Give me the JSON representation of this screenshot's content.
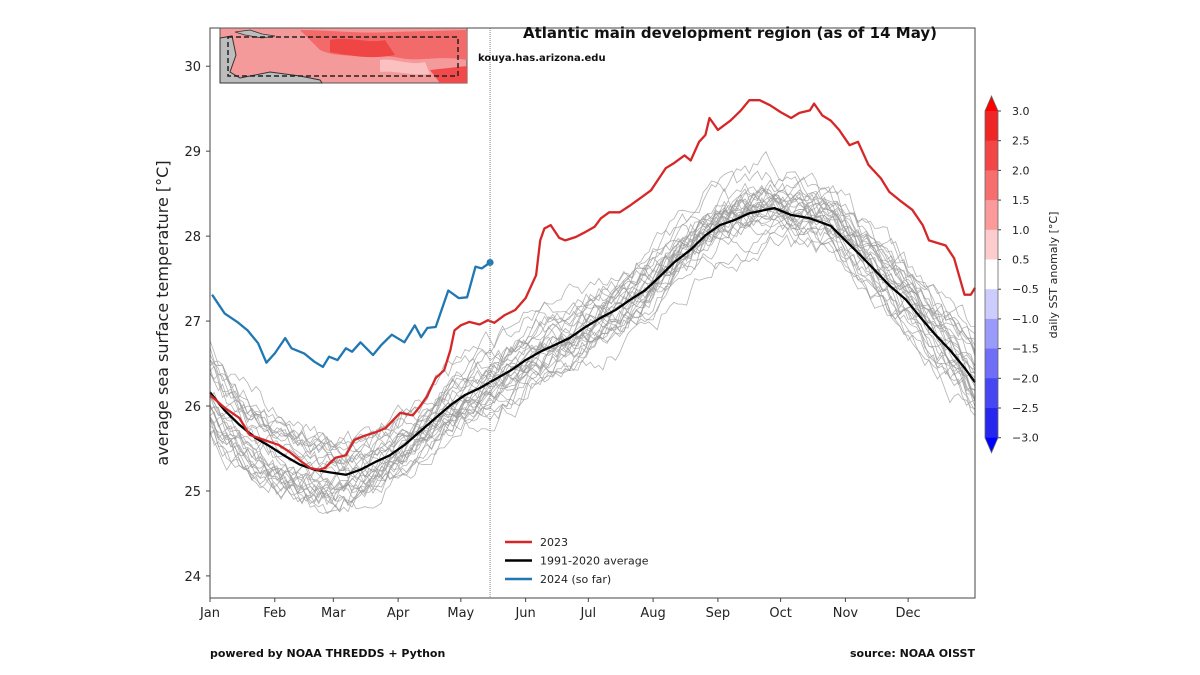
{
  "chart_data": {
    "type": "line",
    "title": "Atlantic main development region (as of 14 May)",
    "watermark": "kouya.has.arizona.edu",
    "ylabel": "average sea surface temperature [°C]",
    "xlabel": "",
    "x_unit": "day of year",
    "xlim": [
      0,
      366
    ],
    "ylim": [
      23.74,
      30.45
    ],
    "x_ticks": [
      {
        "day": 0,
        "label": "Jan"
      },
      {
        "day": 31,
        "label": "Feb"
      },
      {
        "day": 59,
        "label": "Mar"
      },
      {
        "day": 90,
        "label": "Apr"
      },
      {
        "day": 120,
        "label": "May"
      },
      {
        "day": 151,
        "label": "Jun"
      },
      {
        "day": 181,
        "label": "Jul"
      },
      {
        "day": 212,
        "label": "Aug"
      },
      {
        "day": 243,
        "label": "Sep"
      },
      {
        "day": 273,
        "label": "Oct"
      },
      {
        "day": 304,
        "label": "Nov"
      },
      {
        "day": 334,
        "label": "Dec"
      }
    ],
    "y_ticks": [
      24,
      25,
      26,
      27,
      28,
      29,
      30
    ],
    "current_date_marker_day": 134,
    "grid": false,
    "legend_position": "bottom-center",
    "series": [
      {
        "name": "2023",
        "color": "#d62728",
        "points": [
          [
            0,
            26.13
          ],
          [
            7,
            25.98
          ],
          [
            14,
            25.86
          ],
          [
            19,
            25.66
          ],
          [
            26,
            25.6
          ],
          [
            33,
            25.54
          ],
          [
            38,
            25.46
          ],
          [
            43,
            25.36
          ],
          [
            48,
            25.27
          ],
          [
            52,
            25.25
          ],
          [
            55,
            25.27
          ],
          [
            60,
            25.39
          ],
          [
            65,
            25.42
          ],
          [
            69,
            25.6
          ],
          [
            74,
            25.65
          ],
          [
            79,
            25.69
          ],
          [
            84,
            25.74
          ],
          [
            91,
            25.92
          ],
          [
            97,
            25.89
          ],
          [
            100,
            25.98
          ],
          [
            104,
            26.12
          ],
          [
            108,
            26.33
          ],
          [
            112,
            26.42
          ],
          [
            115,
            26.66
          ],
          [
            117,
            26.89
          ],
          [
            120,
            26.95
          ],
          [
            124,
            26.99
          ],
          [
            129,
            26.96
          ],
          [
            133,
            27.01
          ],
          [
            136,
            26.98
          ],
          [
            141,
            27.07
          ],
          [
            146,
            27.13
          ],
          [
            151,
            27.27
          ],
          [
            156,
            27.54
          ],
          [
            158,
            27.95
          ],
          [
            160,
            28.09
          ],
          [
            163,
            28.13
          ],
          [
            167,
            27.98
          ],
          [
            170,
            27.95
          ],
          [
            175,
            27.99
          ],
          [
            179,
            28.04
          ],
          [
            184,
            28.11
          ],
          [
            187,
            28.21
          ],
          [
            191,
            28.28
          ],
          [
            196,
            28.28
          ],
          [
            201,
            28.36
          ],
          [
            206,
            28.45
          ],
          [
            211,
            28.54
          ],
          [
            214,
            28.65
          ],
          [
            218,
            28.8
          ],
          [
            222,
            28.86
          ],
          [
            227,
            28.95
          ],
          [
            230,
            28.89
          ],
          [
            234,
            29.11
          ],
          [
            237,
            29.19
          ],
          [
            239,
            29.39
          ],
          [
            243,
            29.25
          ],
          [
            249,
            29.36
          ],
          [
            254,
            29.48
          ],
          [
            258,
            29.6
          ],
          [
            263,
            29.6
          ],
          [
            268,
            29.54
          ],
          [
            273,
            29.46
          ],
          [
            278,
            29.39
          ],
          [
            282,
            29.45
          ],
          [
            287,
            29.48
          ],
          [
            289,
            29.56
          ],
          [
            293,
            29.42
          ],
          [
            297,
            29.36
          ],
          [
            301,
            29.25
          ],
          [
            306,
            29.07
          ],
          [
            310,
            29.11
          ],
          [
            315,
            28.84
          ],
          [
            321,
            28.68
          ],
          [
            325,
            28.52
          ],
          [
            330,
            28.42
          ],
          [
            336,
            28.31
          ],
          [
            341,
            28.13
          ],
          [
            344,
            27.95
          ],
          [
            352,
            27.89
          ],
          [
            356,
            27.74
          ],
          [
            361,
            27.31
          ],
          [
            364,
            27.31
          ],
          [
            366,
            27.39
          ]
        ]
      },
      {
        "name": "1991-2020 average",
        "color": "#000000",
        "points": [
          [
            0,
            26.16
          ],
          [
            7,
            25.95
          ],
          [
            14,
            25.78
          ],
          [
            22,
            25.62
          ],
          [
            29,
            25.52
          ],
          [
            36,
            25.41
          ],
          [
            43,
            25.31
          ],
          [
            50,
            25.25
          ],
          [
            57,
            25.22
          ],
          [
            65,
            25.19
          ],
          [
            72,
            25.25
          ],
          [
            79,
            25.34
          ],
          [
            86,
            25.42
          ],
          [
            93,
            25.54
          ],
          [
            100,
            25.69
          ],
          [
            108,
            25.86
          ],
          [
            115,
            26.01
          ],
          [
            122,
            26.13
          ],
          [
            129,
            26.21
          ],
          [
            136,
            26.31
          ],
          [
            144,
            26.42
          ],
          [
            151,
            26.54
          ],
          [
            158,
            26.64
          ],
          [
            165,
            26.72
          ],
          [
            172,
            26.8
          ],
          [
            179,
            26.92
          ],
          [
            187,
            27.04
          ],
          [
            194,
            27.13
          ],
          [
            201,
            27.25
          ],
          [
            208,
            27.36
          ],
          [
            215,
            27.52
          ],
          [
            222,
            27.69
          ],
          [
            230,
            27.84
          ],
          [
            237,
            28.01
          ],
          [
            244,
            28.13
          ],
          [
            251,
            28.19
          ],
          [
            258,
            28.27
          ],
          [
            266,
            28.31
          ],
          [
            270,
            28.33
          ],
          [
            278,
            28.25
          ],
          [
            287,
            28.21
          ],
          [
            297,
            28.12
          ],
          [
            304,
            27.95
          ],
          [
            311,
            27.78
          ],
          [
            318,
            27.6
          ],
          [
            325,
            27.42
          ],
          [
            333,
            27.25
          ],
          [
            340,
            27.04
          ],
          [
            347,
            26.84
          ],
          [
            354,
            26.66
          ],
          [
            361,
            26.45
          ],
          [
            366,
            26.28
          ]
        ]
      },
      {
        "name": "2024 (so far)",
        "color": "#1f77b4",
        "points": [
          [
            1,
            27.31
          ],
          [
            7,
            27.09
          ],
          [
            13,
            26.99
          ],
          [
            18,
            26.89
          ],
          [
            23,
            26.74
          ],
          [
            27,
            26.51
          ],
          [
            31,
            26.62
          ],
          [
            36,
            26.8
          ],
          [
            39,
            26.68
          ],
          [
            45,
            26.62
          ],
          [
            50,
            26.52
          ],
          [
            54,
            26.46
          ],
          [
            57,
            26.58
          ],
          [
            61,
            26.54
          ],
          [
            65,
            26.68
          ],
          [
            68,
            26.64
          ],
          [
            72,
            26.75
          ],
          [
            78,
            26.6
          ],
          [
            82,
            26.72
          ],
          [
            87,
            26.84
          ],
          [
            93,
            26.75
          ],
          [
            98,
            26.95
          ],
          [
            101,
            26.81
          ],
          [
            104,
            26.92
          ],
          [
            108,
            26.93
          ],
          [
            114,
            27.36
          ],
          [
            119,
            27.27
          ],
          [
            123,
            27.28
          ],
          [
            127,
            27.64
          ],
          [
            130,
            27.62
          ],
          [
            134,
            27.69
          ]
        ]
      }
    ],
    "background_years_color": "#9a9a9a",
    "colorbar": {
      "label": "daily SST anomaly [°C]",
      "ticks": [
        "3.0",
        "2.5",
        "2.0",
        "1.5",
        "1.0",
        "0.5",
        "−0.5",
        "−1.0",
        "−1.5",
        "−2.0",
        "−2.5",
        "−3.0"
      ],
      "colors": [
        "#ff0000",
        "#ee2626",
        "#f24646",
        "#f76e6e",
        "#fa9a9a",
        "#fdcdcd",
        "#ffffff",
        "#cdcdfd",
        "#9a9afa",
        "#6e6ef7",
        "#4646f2",
        "#2626ee",
        "#0000ff"
      ]
    }
  },
  "footer": {
    "left": "powered by NOAA THREDDS + Python",
    "right": "source: NOAA OISST"
  }
}
